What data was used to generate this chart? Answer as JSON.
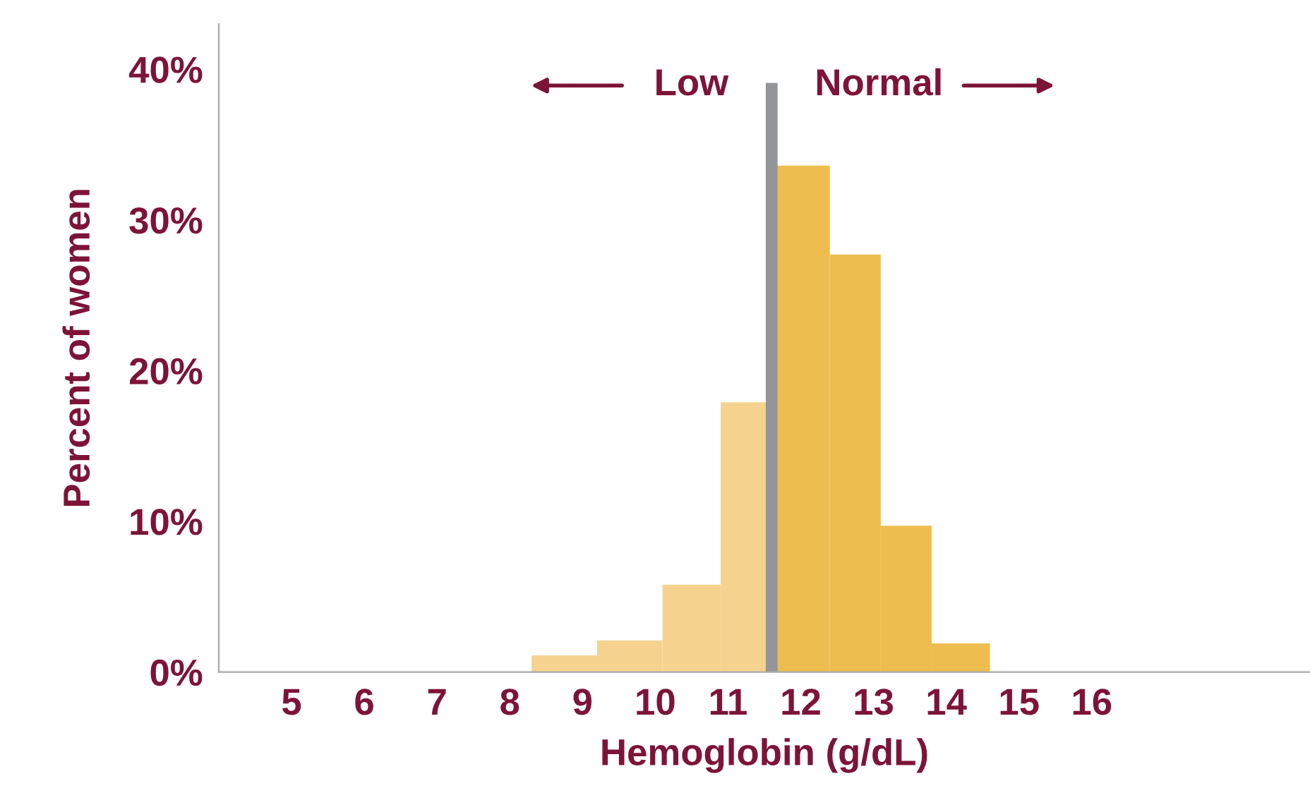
{
  "chart_data": {
    "type": "histogram",
    "xlabel": "Hemoglobin (g/dL)",
    "ylabel": "Percent of women",
    "bins": [
      8.3,
      9.2,
      10.1,
      10.9,
      11.6,
      12.4,
      13.1,
      13.8,
      14.6
    ],
    "values": [
      1.1,
      2.1,
      5.8,
      17.9,
      33.6,
      27.7,
      9.7,
      1.9
    ],
    "colors": [
      "#f5d38f",
      "#f5d38f",
      "#f5d38f",
      "#f5d38f",
      "#eebd4f",
      "#eebd4f",
      "#eebd4f",
      "#eebd4f"
    ],
    "xlim": [
      4,
      19
    ],
    "xticks": [
      5,
      6,
      7,
      8,
      9,
      10,
      11,
      12,
      13,
      14,
      15,
      16
    ],
    "ylim": [
      0,
      43
    ],
    "yticks": [
      {
        "value": 0,
        "label": "0%"
      },
      {
        "value": 10,
        "label": "10%"
      },
      {
        "value": 20,
        "label": "20%"
      },
      {
        "value": 30,
        "label": "30%"
      },
      {
        "value": 40,
        "label": "40%"
      }
    ],
    "ref_lines": [
      {
        "axis": "x",
        "value": 11.6,
        "label": null,
        "color": "#939598"
      }
    ],
    "annotations": [
      "Low",
      "Normal"
    ],
    "grid": false,
    "legend": false
  }
}
